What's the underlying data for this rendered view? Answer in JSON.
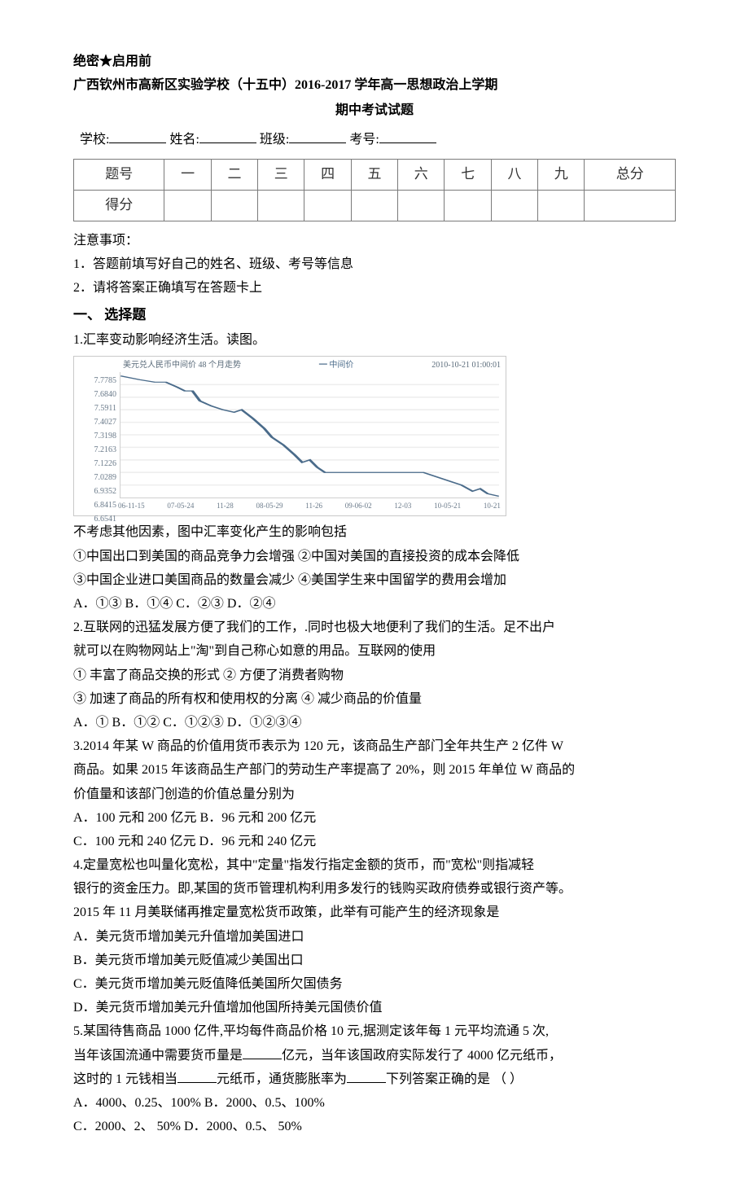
{
  "header": {
    "secrecy": "绝密★启用前",
    "school_line": "广西钦州市高新区实验学校（十五中）2016-2017 学年高一思想政治上学期",
    "exam_title": "期中考试试题",
    "fill_labels": {
      "school": "学校:",
      "name": "姓名:",
      "class": "班级:",
      "exam_no": "考号:"
    }
  },
  "score_table": {
    "row1": [
      "题号",
      "一",
      "二",
      "三",
      "四",
      "五",
      "六",
      "七",
      "八",
      "九",
      "总分"
    ],
    "row2_head": "得分"
  },
  "notices": {
    "head": "注意事项：",
    "items": [
      "1．答题前填写好自己的姓名、班级、考号等信息",
      "2．请将答案正确填写在答题卡上"
    ]
  },
  "section1": "一、 选择题",
  "q1": {
    "stem": "1.汇率变动影响经济生活。读图。",
    "chart": {
      "type": "line",
      "title_left": "美元兑人民币中间价 48 个月走势",
      "legend": "━ 中间价",
      "title_right": "2010-10-21  01:00:01",
      "y_ticks": [
        "7.7785",
        "7.6840",
        "7.5911",
        "7.4027",
        "7.3198",
        "7.2163",
        "7.1226",
        "7.0289",
        "6.9352",
        "6.8415",
        "6.6541"
      ],
      "x_ticks": [
        "06-11-15",
        "07-05-24",
        "11-28",
        "08-05-29",
        "11-26",
        "09-06-02",
        "12-03",
        "10-05-21",
        "10-21"
      ],
      "line_color": "#4a6b8a",
      "grid_color": "#e6e6e6",
      "background_color": "#ffffff",
      "points": [
        [
          0,
          0.03
        ],
        [
          0.05,
          0.06
        ],
        [
          0.09,
          0.08
        ],
        [
          0.12,
          0.08
        ],
        [
          0.15,
          0.12
        ],
        [
          0.17,
          0.15
        ],
        [
          0.19,
          0.15
        ],
        [
          0.21,
          0.23
        ],
        [
          0.24,
          0.27
        ],
        [
          0.27,
          0.3
        ],
        [
          0.3,
          0.32
        ],
        [
          0.32,
          0.3
        ],
        [
          0.35,
          0.37
        ],
        [
          0.38,
          0.45
        ],
        [
          0.4,
          0.52
        ],
        [
          0.43,
          0.58
        ],
        [
          0.46,
          0.66
        ],
        [
          0.48,
          0.72
        ],
        [
          0.5,
          0.7
        ],
        [
          0.52,
          0.76
        ],
        [
          0.54,
          0.8
        ],
        [
          0.56,
          0.8
        ],
        [
          0.58,
          0.8
        ],
        [
          0.6,
          0.8
        ],
        [
          0.63,
          0.8
        ],
        [
          0.66,
          0.8
        ],
        [
          0.7,
          0.8
        ],
        [
          0.74,
          0.8
        ],
        [
          0.78,
          0.8
        ],
        [
          0.8,
          0.8
        ],
        [
          0.82,
          0.82
        ],
        [
          0.85,
          0.85
        ],
        [
          0.88,
          0.88
        ],
        [
          0.9,
          0.9
        ],
        [
          0.93,
          0.95
        ],
        [
          0.95,
          0.93
        ],
        [
          0.97,
          0.97
        ],
        [
          1.0,
          0.99
        ]
      ]
    },
    "after_chart": "不考虑其他因素，图中汇率变化产生的影响包括",
    "stmts": [
      "①中国出口到美国的商品竞争力会增强    ②中国对美国的直接投资的成本会降低",
      "③中国企业进口美国商品的数量会减少    ④美国学生来中国留学的费用会增加"
    ],
    "options": "A．①③ B．①④ C．②③ D．②④"
  },
  "q2": {
    "l1": "2.互联网的迅猛发展方便了我们的工作，.同时也极大地便利了我们的生活。足不出户",
    "l2": "就可以在购物网站上\"淘\"到自己称心如意的用品。互联网的使用",
    "stmts": [
      "① 丰富了商品交换的形式 ② 方便了消费者购物",
      "③ 加速了商品的所有权和使用权的分离 ④ 减少商品的价值量"
    ],
    "options": "A．① B．①② C．①②③ D．①②③④"
  },
  "q3": {
    "l1": "3.2014 年某 W 商品的价值用货币表示为 120 元，该商品生产部门全年共生产 2 亿件 W",
    "l2": "商品。如果 2015 年该商品生产部门的劳动生产率提高了 20%，则 2015 年单位 W 商品的",
    "l3": "价值量和该部门创造的价值总量分别为",
    "opts1": "A．100 元和 200 亿元 B．96 元和 200 亿元",
    "opts2": "C．100 元和 240 亿元 D．96 元和 240 亿元"
  },
  "q4": {
    "l1": "4.定量宽松也叫量化宽松，其中\"定量\"指发行指定金额的货币，而\"宽松\"则指减轻",
    "l2": "银行的资金压力。即,某国的货币管理机构利用多发行的钱购买政府债券或银行资产等。",
    "l3": "2015 年 11 月美联储再推定量宽松货币政策，此举有可能产生的经济现象是",
    "a": "A．美元货币增加美元升值增加美国进口",
    "b": "B．美元货币增加美元贬值减少美国出口",
    "c": "C．美元货币增加美元贬值降低美国所欠国债务",
    "d": "D．美元货币增加美元升值增加他国所持美元国债价值"
  },
  "q5": {
    "l1_a": "5.某国待售商品 1000 亿件,平均每件商品价格 10 元,据测定该年每 1 元平均流通 5 次,",
    "l2_a": "当年该国流通中需要货币量是",
    "l2_b": "亿元，当年该国政府实际发行了 4000 亿元纸币，",
    "l3_a": "这时的 1 元钱相当",
    "l3_b": "元纸币，通货膨胀率为",
    "l3_c": "下列答案正确的是    （    ）",
    "opts1": "A．4000、0.25、100% B．2000、0.5、100%",
    "opts2": "C．2000、2、 50% D．2000、0.5、 50%"
  }
}
